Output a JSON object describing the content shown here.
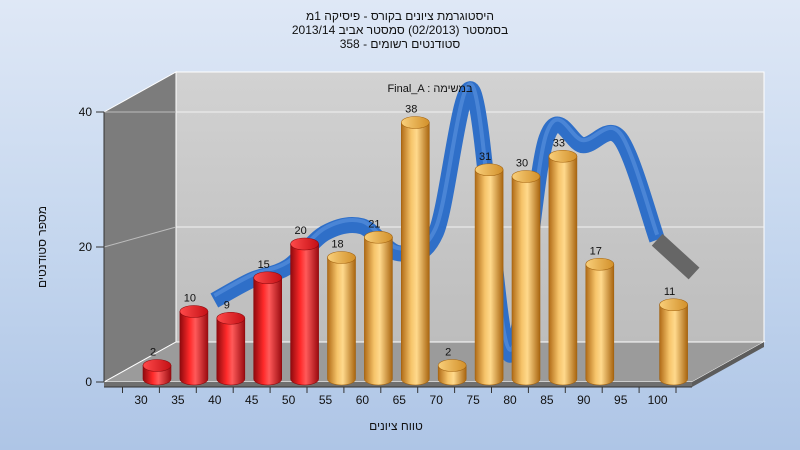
{
  "chart_data": {
    "type": "bar",
    "title_lines": [
      "היסטוגרמת ציונים בקורס - פיסיקה 1מ",
      "בסמסטר  (02/2013)  סמסטר אביב 2013/14",
      "סטודנטים רשומים - 358"
    ],
    "annotation": "Final_A : במשימה",
    "xlabel": "טווח ציונים",
    "ylabel": "מספר סטודנטים",
    "categories": [
      "30",
      "35",
      "40",
      "45",
      "50",
      "55",
      "60",
      "65",
      "70",
      "75",
      "80",
      "85",
      "90",
      "95",
      "100"
    ],
    "values": [
      2,
      10,
      9,
      15,
      20,
      18,
      21,
      38,
      2,
      31,
      30,
      33,
      17,
      null,
      11
    ],
    "bar_colors": [
      "red",
      "red",
      "red",
      "red",
      "red",
      "orange",
      "orange",
      "orange",
      "orange",
      "orange",
      "orange",
      "orange",
      "orange",
      "orange",
      "orange"
    ],
    "ylim": [
      0,
      40
    ],
    "yticks": [
      0,
      20,
      40
    ],
    "grid": true,
    "ribbon": {
      "name": "distribution curve",
      "x_positions": [
        37.5,
        42.5,
        47.5,
        52.5,
        57.5,
        62.5,
        67.5,
        72.5,
        77.5,
        82.5,
        87.5,
        92.5,
        97.5,
        102.5
      ],
      "values": [
        10,
        13,
        15,
        20,
        21,
        17,
        20,
        41,
        2,
        34,
        33,
        34,
        19,
        14
      ],
      "colors": {
        "blue": "#2f6fc8",
        "grey": "#666666"
      }
    },
    "colors": {
      "red": "#e0121a",
      "orange": "#e8a33a",
      "wall": "#c8c8c8",
      "side_wall": "#7f7f7f",
      "floor": "#9a9a9a"
    }
  }
}
